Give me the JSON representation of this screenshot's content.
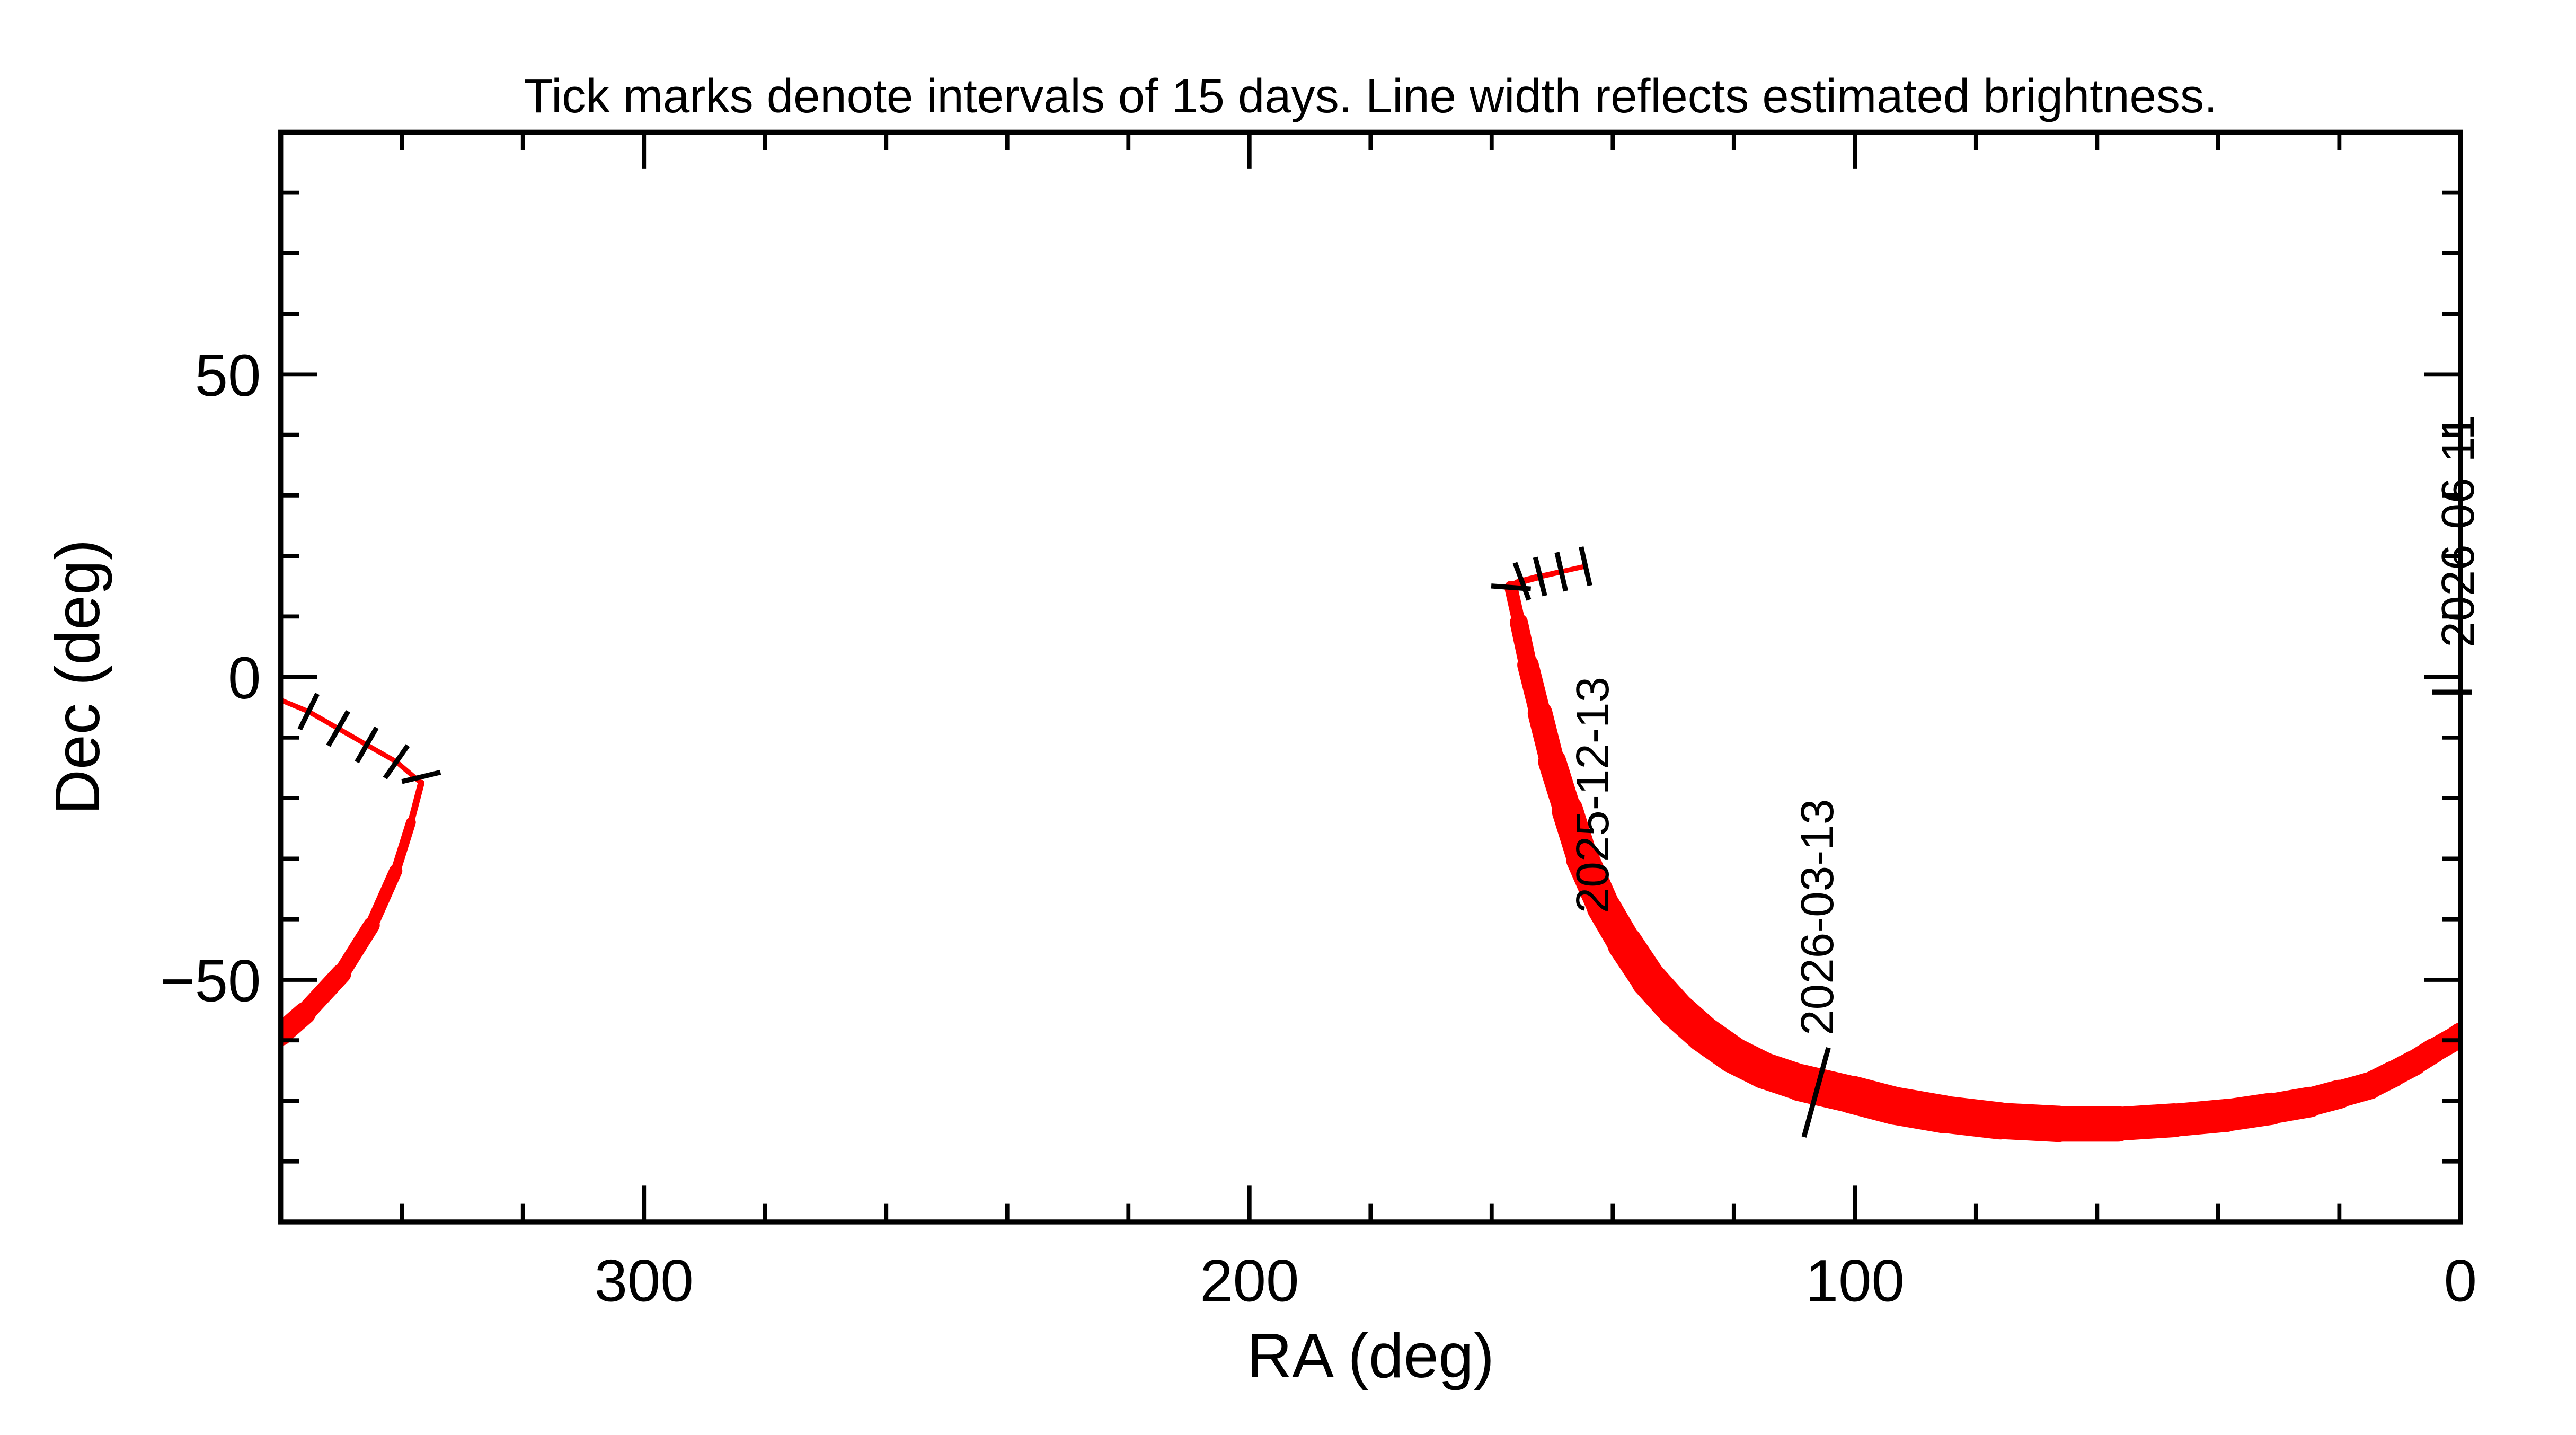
{
  "chart_data": {
    "type": "line",
    "title": "Tick marks denote intervals of 15 days.  Line width reflects estimated brightness.",
    "xlabel": "RA (deg)",
    "ylabel": "Dec (deg)",
    "xlim": [
      360,
      0
    ],
    "ylim": [
      -90,
      90
    ],
    "x_ticks": [
      300,
      200,
      100,
      0
    ],
    "x_tick_labels": [
      "300",
      "200",
      "100",
      "0"
    ],
    "y_ticks": [
      50,
      0,
      -50
    ],
    "y_tick_labels": [
      "50",
      "0",
      "−50"
    ],
    "grid": false,
    "line_color": "#ff0000",
    "tick_color": "#000000",
    "track": [
      {
        "ra": 144.5,
        "dec": 18.3,
        "w": 1.5
      },
      {
        "ra": 148.5,
        "dec": 17.4,
        "w": 1.5
      },
      {
        "ra": 152,
        "dec": 16.6,
        "w": 1.8
      },
      {
        "ra": 155,
        "dec": 15.8,
        "w": 2.2
      },
      {
        "ra": 156.8,
        "dec": 14.8,
        "w": 3
      },
      {
        "ra": 155.5,
        "dec": 9,
        "w": 5
      },
      {
        "ra": 154,
        "dec": 2,
        "w": 6
      },
      {
        "ra": 152,
        "dec": -6,
        "w": 7
      },
      {
        "ra": 150,
        "dec": -14,
        "w": 8
      },
      {
        "ra": 147.5,
        "dec": -22,
        "w": 9
      },
      {
        "ra": 145,
        "dec": -30,
        "w": 10
      },
      {
        "ra": 141.5,
        "dec": -38,
        "w": 10
      },
      {
        "ra": 138,
        "dec": -44,
        "w": 10.5
      },
      {
        "ra": 134,
        "dec": -50,
        "w": 11
      },
      {
        "ra": 129.5,
        "dec": -55,
        "w": 11
      },
      {
        "ra": 125,
        "dec": -59,
        "w": 11
      },
      {
        "ra": 120,
        "dec": -62.5,
        "w": 11
      },
      {
        "ra": 115,
        "dec": -65,
        "w": 11
      },
      {
        "ra": 109,
        "dec": -67,
        "w": 11
      },
      {
        "ra": 100.4,
        "dec": -69,
        "w": 11.5
      },
      {
        "ra": 93.5,
        "dec": -70.8,
        "w": 11.5
      },
      {
        "ra": 85.4,
        "dec": -72.2,
        "w": 11.5
      },
      {
        "ra": 76,
        "dec": -73.3,
        "w": 11
      },
      {
        "ra": 66.4,
        "dec": -73.8,
        "w": 11
      },
      {
        "ra": 56.6,
        "dec": -73.8,
        "w": 10.5
      },
      {
        "ra": 47.3,
        "dec": -73.2,
        "w": 10
      },
      {
        "ra": 38.6,
        "dec": -72.4,
        "w": 10
      },
      {
        "ra": 31.2,
        "dec": -71.3,
        "w": 9.5
      },
      {
        "ra": 24.9,
        "dec": -70.2,
        "w": 9
      },
      {
        "ra": 20,
        "dec": -68.9,
        "w": 8.5
      },
      {
        "ra": 15,
        "dec": -67.5,
        "w": 8
      },
      {
        "ra": 11.2,
        "dec": -65.6,
        "w": 8
      },
      {
        "ra": 7.6,
        "dec": -63.7,
        "w": 7.5
      },
      {
        "ra": 4.4,
        "dec": -61.7,
        "w": 7.5
      },
      {
        "ra": 1.6,
        "dec": -60.1,
        "w": 7
      },
      {
        "ra": 0,
        "dec": -59,
        "w": 7
      },
      {
        "ra": 360,
        "dec": -59,
        "w": 7
      },
      {
        "ra": 356,
        "dec": -55.5,
        "w": 6.5
      },
      {
        "ra": 350,
        "dec": -49,
        "w": 5.5
      },
      {
        "ra": 345,
        "dec": -41,
        "w": 4.5
      },
      {
        "ra": 341,
        "dec": -32,
        "w": 3.5
      },
      {
        "ra": 338.5,
        "dec": -24,
        "w": 2.5
      },
      {
        "ra": 336.8,
        "dec": -17.5,
        "w": 1.5
      },
      {
        "ra": 340.9,
        "dec": -14,
        "w": 1.5
      },
      {
        "ra": 345.8,
        "dec": -11.2,
        "w": 1.5
      },
      {
        "ra": 350.5,
        "dec": -8.5,
        "w": 1.5
      },
      {
        "ra": 355.4,
        "dec": -5.7,
        "w": 1.5
      },
      {
        "ra": 360,
        "dec": -3.8,
        "w": 1.5
      },
      {
        "ra": 0,
        "dec": -3.8,
        "w": 1.5
      },
      {
        "ra": 0,
        "dec": -3.5,
        "w": 1.5
      }
    ],
    "date_ticks": [
      {
        "ra": 144.5,
        "dec": 18.3,
        "size": "small",
        "label": "2025-12-13"
      },
      {
        "ra": 148.5,
        "dec": 17.4,
        "size": "small"
      },
      {
        "ra": 152,
        "dec": 16.6,
        "size": "small"
      },
      {
        "ra": 155,
        "dec": 15.8,
        "size": "small"
      },
      {
        "ra": 156.8,
        "dec": 14.8,
        "size": "small"
      },
      {
        "ra": 106.4,
        "dec": -68.6,
        "size": "large",
        "label": "2026-03-13"
      },
      {
        "ra": 336.8,
        "dec": -16.5,
        "size": "small"
      },
      {
        "ra": 340.9,
        "dec": -14,
        "size": "small"
      },
      {
        "ra": 345.8,
        "dec": -11.2,
        "size": "small"
      },
      {
        "ra": 350.5,
        "dec": -8.5,
        "size": "small"
      },
      {
        "ra": 355.4,
        "dec": -5.7,
        "size": "small"
      },
      {
        "ra": 1.4,
        "dec": -2.5,
        "size": "small",
        "label": "2026-06-11"
      }
    ]
  }
}
